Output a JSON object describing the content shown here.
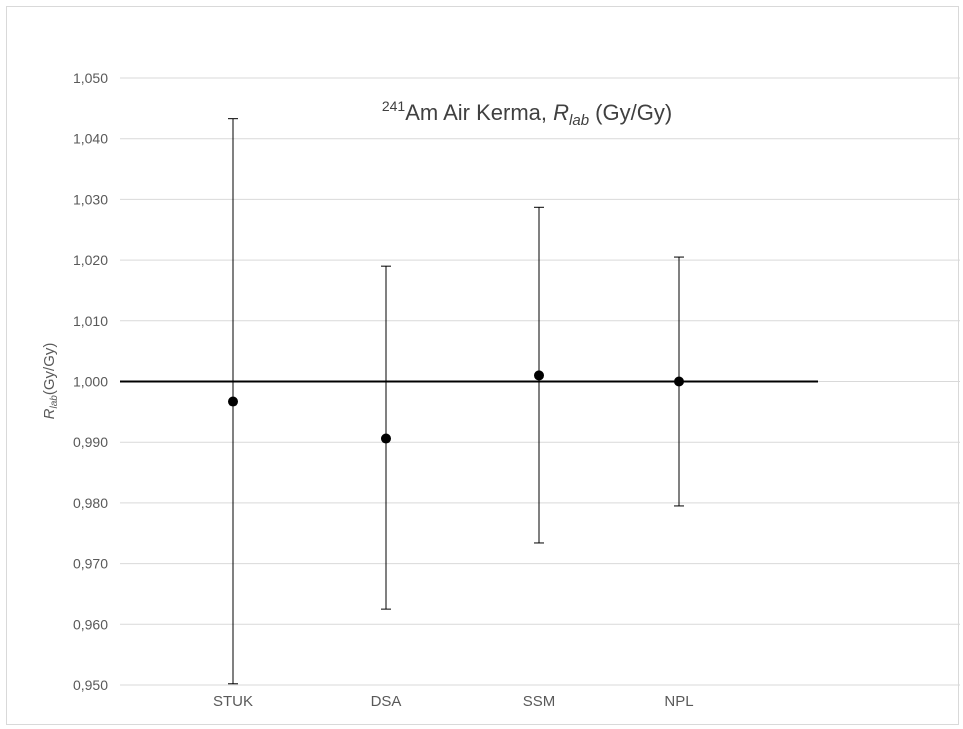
{
  "chart_data": {
    "type": "scatter",
    "title": {
      "superscript": "241",
      "main": "Am Air Kerma, ",
      "var_base": "R",
      "var_sub": "lab",
      "unit": " (Gy/Gy)"
    },
    "ylabel": {
      "var_base": "R",
      "var_sub": "lab",
      "unit": "(Gy/Gy)"
    },
    "xlabel": "",
    "categories": [
      "STUK",
      "DSA",
      "SSM",
      "NPL"
    ],
    "values": [
      0.9967,
      0.9906,
      1.001,
      1.0
    ],
    "error_low": [
      0.9502,
      0.9625,
      0.9734,
      0.9795
    ],
    "error_high": [
      1.0433,
      1.019,
      1.0287,
      1.0205
    ],
    "reference_line": 1.0,
    "ylim": [
      0.95,
      1.05
    ],
    "yticks": [
      0.95,
      0.96,
      0.97,
      0.98,
      0.99,
      1.0,
      1.01,
      1.02,
      1.03,
      1.04,
      1.05
    ],
    "ytick_labels": [
      "0,950",
      "0,960",
      "0,970",
      "0,980",
      "0,990",
      "1,000",
      "1,010",
      "1,020",
      "1,030",
      "1,040",
      "1,050"
    ],
    "grid": true,
    "legend": "none",
    "colors": {
      "marker": "#000000",
      "error_bar": "#000000",
      "grid": "#d9d9d9",
      "axis_text": "#595959",
      "reference_line": "#000000"
    }
  }
}
